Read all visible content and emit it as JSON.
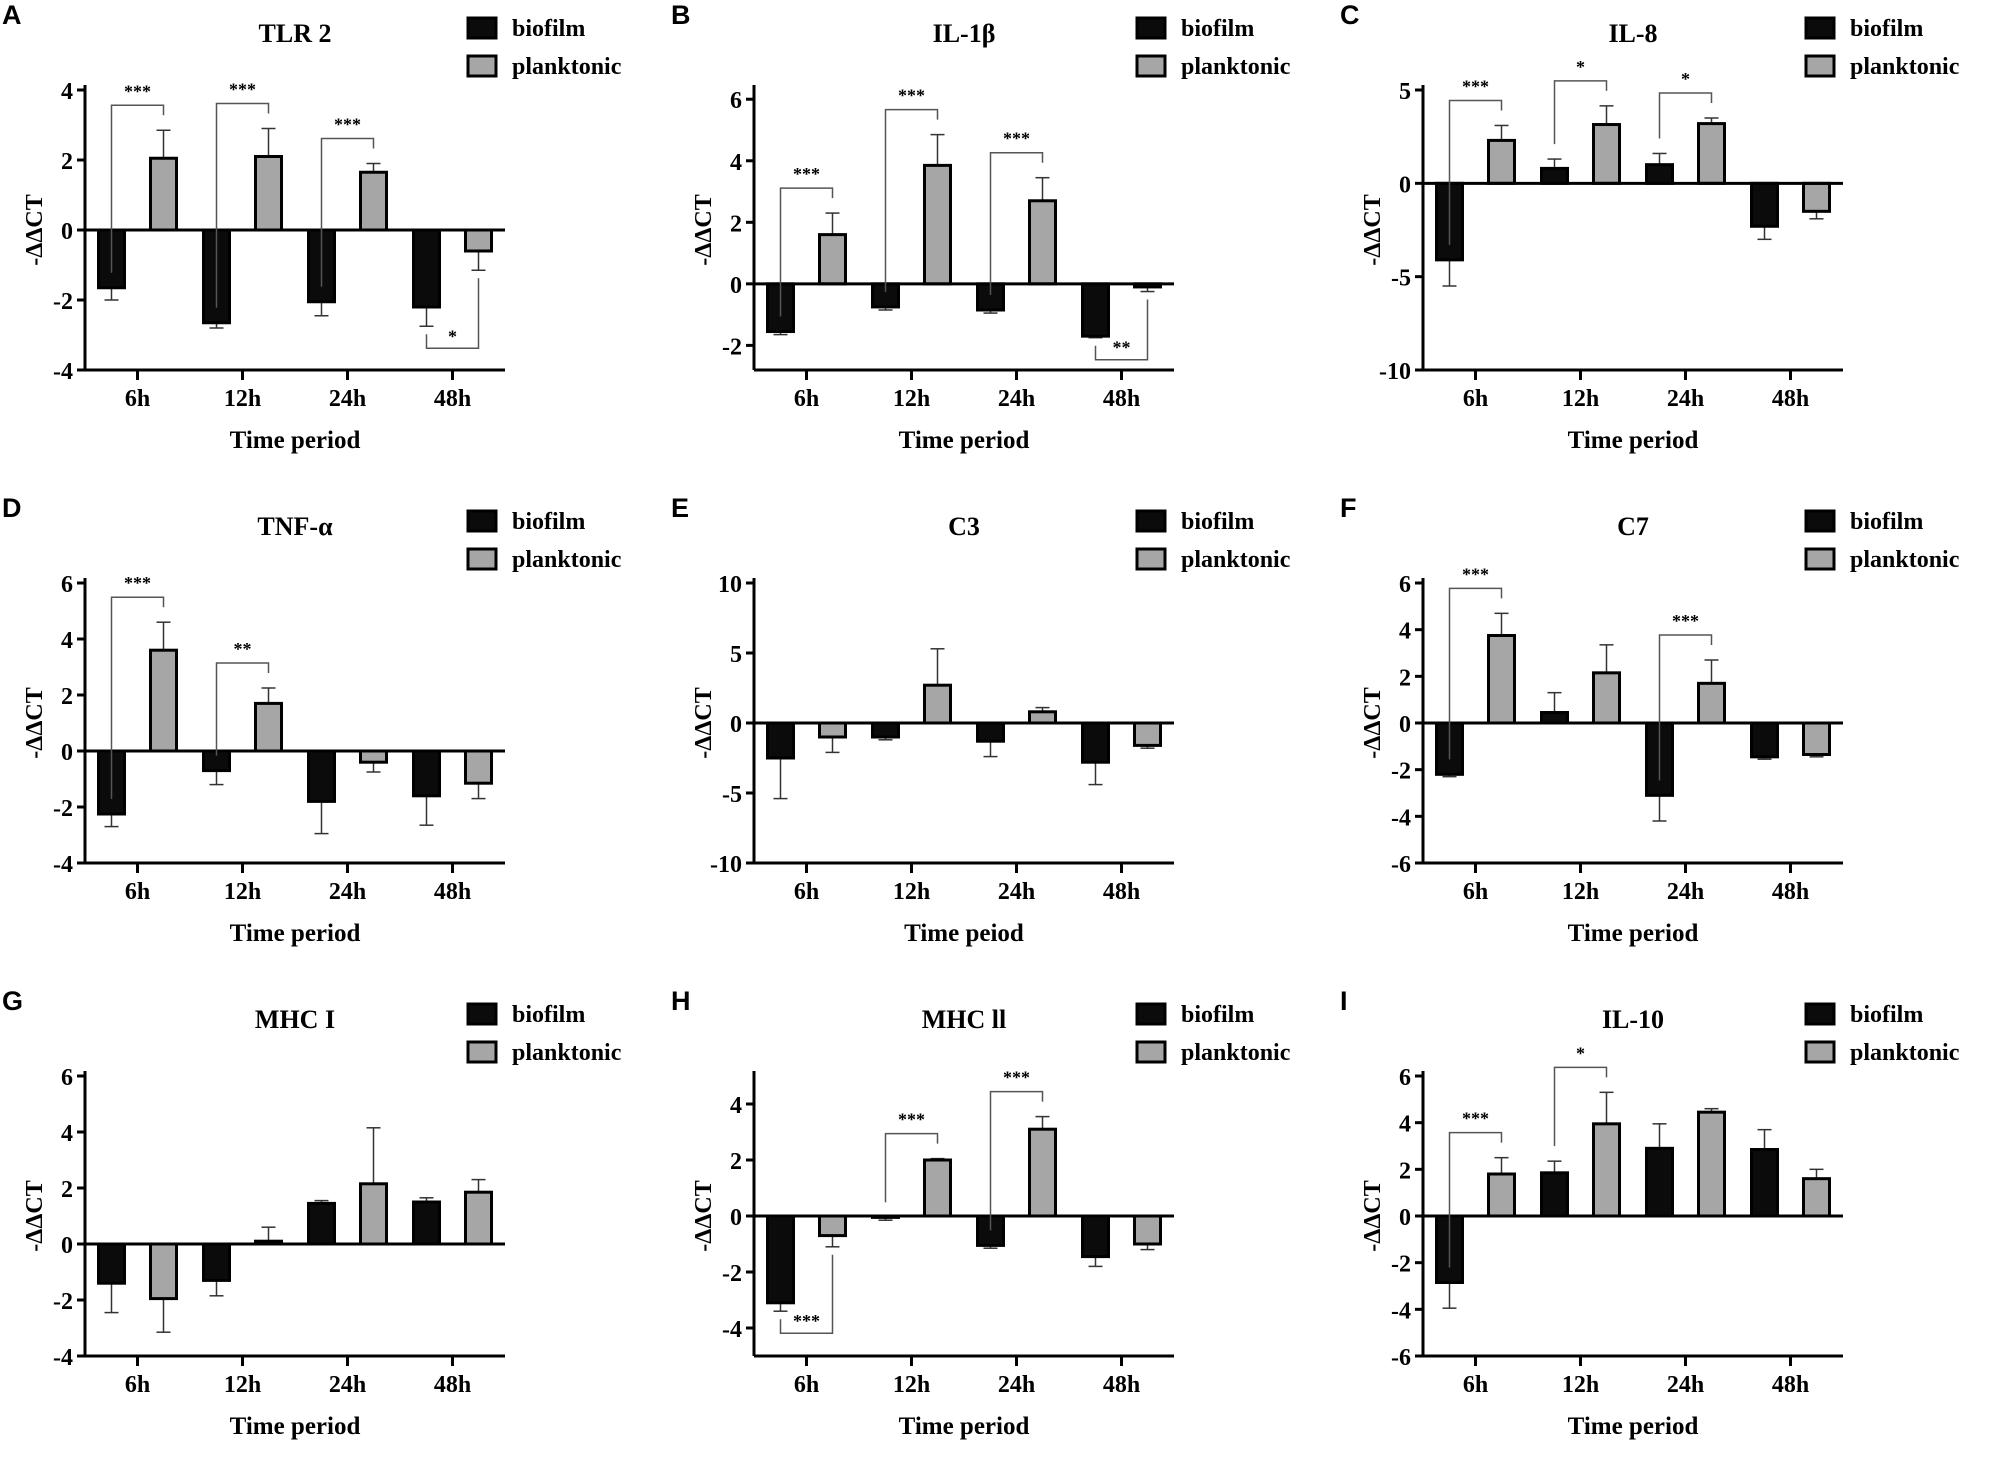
{
  "legend": {
    "biofilm": "biofilm",
    "planktonic": "planktonic"
  },
  "colors": {
    "biofilm": "#0b0b0b",
    "planktonic": "#a6a6a6"
  },
  "chart_data": [
    {
      "panel": "A",
      "type": "bar",
      "title": "TLR 2",
      "xlabel": "Time period",
      "ylabel": "-ΔΔCT",
      "ylim": [
        -4,
        4
      ],
      "yticks": [
        -4,
        -2,
        0,
        2,
        4
      ],
      "categories": [
        "6h",
        "12h",
        "24h",
        "48h"
      ],
      "series": [
        {
          "name": "biofilm",
          "values": [
            -1.65,
            -2.65,
            -2.05,
            -2.2
          ],
          "errors": [
            0.35,
            0.15,
            0.4,
            0.55
          ]
        },
        {
          "name": "planktonic",
          "values": [
            2.05,
            2.1,
            1.65,
            -0.6
          ],
          "errors": [
            0.8,
            0.8,
            0.25,
            0.55
          ]
        }
      ],
      "significance": [
        {
          "category": "6h",
          "label": "***",
          "position": "above"
        },
        {
          "category": "12h",
          "label": "***",
          "position": "above"
        },
        {
          "category": "24h",
          "label": "***",
          "position": "above"
        },
        {
          "category": "48h",
          "label": "*",
          "position": "below"
        }
      ]
    },
    {
      "panel": "B",
      "type": "bar",
      "title": "IL-1β",
      "xlabel": "Time period",
      "ylabel": "-ΔΔCT",
      "ylim": [
        -2.8,
        6.3
      ],
      "yticks": [
        -2,
        0,
        2,
        4,
        6
      ],
      "categories": [
        "6h",
        "12h",
        "24h",
        "48h"
      ],
      "series": [
        {
          "name": "biofilm",
          "values": [
            -1.55,
            -0.75,
            -0.85,
            -1.7
          ],
          "errors": [
            0.1,
            0.1,
            0.1,
            0.05
          ]
        },
        {
          "name": "planktonic",
          "values": [
            1.6,
            3.85,
            2.7,
            -0.1
          ],
          "errors": [
            0.7,
            1.0,
            0.75,
            0.15
          ]
        }
      ],
      "significance": [
        {
          "category": "6h",
          "label": "***",
          "position": "above"
        },
        {
          "category": "12h",
          "label": "***",
          "position": "above"
        },
        {
          "category": "24h",
          "label": "***",
          "position": "above"
        },
        {
          "category": "48h",
          "label": "**",
          "position": "below"
        }
      ]
    },
    {
      "panel": "C",
      "type": "bar",
      "title": "IL-8",
      "xlabel": "Time period",
      "ylabel": "-ΔΔCT",
      "ylim": [
        -10,
        5
      ],
      "yticks": [
        -10,
        -5,
        0,
        5
      ],
      "categories": [
        "6h",
        "12h",
        "24h",
        "48h"
      ],
      "series": [
        {
          "name": "biofilm",
          "values": [
            -4.1,
            0.8,
            1.0,
            -2.3
          ],
          "errors": [
            1.4,
            0.5,
            0.6,
            0.7
          ]
        },
        {
          "name": "planktonic",
          "values": [
            2.3,
            3.15,
            3.2,
            -1.5
          ],
          "errors": [
            0.8,
            1.0,
            0.3,
            0.4
          ]
        }
      ],
      "significance": [
        {
          "category": "6h",
          "label": "***",
          "position": "above"
        },
        {
          "category": "12h",
          "label": "*",
          "position": "above"
        },
        {
          "category": "24h",
          "label": "*",
          "position": "above"
        }
      ]
    },
    {
      "panel": "D",
      "type": "bar",
      "title": "TNF-α",
      "xlabel": "Time period",
      "ylabel": "-ΔΔCT",
      "ylim": [
        -4,
        6
      ],
      "yticks": [
        -4,
        -2,
        0,
        2,
        4,
        6
      ],
      "categories": [
        "6h",
        "12h",
        "24h",
        "48h"
      ],
      "series": [
        {
          "name": "biofilm",
          "values": [
            -2.25,
            -0.7,
            -1.8,
            -1.6
          ],
          "errors": [
            0.45,
            0.5,
            1.15,
            1.05
          ]
        },
        {
          "name": "planktonic",
          "values": [
            3.6,
            1.7,
            -0.4,
            -1.15
          ],
          "errors": [
            1.0,
            0.55,
            0.35,
            0.55
          ]
        }
      ],
      "significance": [
        {
          "category": "6h",
          "label": "***",
          "position": "above"
        },
        {
          "category": "12h",
          "label": "**",
          "position": "above"
        }
      ]
    },
    {
      "panel": "E",
      "type": "bar",
      "title": "C3",
      "xlabel": "Time peiod",
      "ylabel": "-ΔΔCT",
      "ylim": [
        -10,
        10
      ],
      "yticks": [
        -10,
        -5,
        0,
        5,
        10
      ],
      "categories": [
        "6h",
        "12h",
        "24h",
        "48h"
      ],
      "series": [
        {
          "name": "biofilm",
          "values": [
            -2.5,
            -1.0,
            -1.3,
            -2.8
          ],
          "errors": [
            2.9,
            0.2,
            1.1,
            1.6
          ]
        },
        {
          "name": "planktonic",
          "values": [
            -1.0,
            2.7,
            0.8,
            -1.6
          ],
          "errors": [
            1.1,
            2.6,
            0.3,
            0.2
          ]
        }
      ],
      "significance": []
    },
    {
      "panel": "F",
      "type": "bar",
      "title": "C7",
      "xlabel": "Time period",
      "ylabel": "-ΔΔCT",
      "ylim": [
        -6,
        6
      ],
      "yticks": [
        -6,
        -4,
        -2,
        0,
        2,
        4,
        6
      ],
      "categories": [
        "6h",
        "12h",
        "24h",
        "48h"
      ],
      "series": [
        {
          "name": "biofilm",
          "values": [
            -2.2,
            0.45,
            -3.1,
            -1.45
          ],
          "errors": [
            0.1,
            0.85,
            1.1,
            0.1
          ]
        },
        {
          "name": "planktonic",
          "values": [
            3.75,
            2.15,
            1.7,
            -1.35
          ],
          "errors": [
            0.95,
            1.2,
            1.0,
            0.1
          ]
        }
      ],
      "significance": [
        {
          "category": "6h",
          "label": "***",
          "position": "above"
        },
        {
          "category": "24h",
          "label": "***",
          "position": "above"
        }
      ]
    },
    {
      "panel": "G",
      "type": "bar",
      "title": "MHC I",
      "xlabel": "Time period",
      "ylabel": "-ΔΔCT",
      "ylim": [
        -4,
        6
      ],
      "yticks": [
        -4,
        -2,
        0,
        2,
        4,
        6
      ],
      "categories": [
        "6h",
        "12h",
        "24h",
        "48h"
      ],
      "series": [
        {
          "name": "biofilm",
          "values": [
            -1.4,
            -1.3,
            1.45,
            1.5
          ],
          "errors": [
            1.05,
            0.55,
            0.1,
            0.15
          ]
        },
        {
          "name": "planktonic",
          "values": [
            -1.95,
            0.1,
            2.15,
            1.85
          ],
          "errors": [
            1.2,
            0.5,
            2.0,
            0.45
          ]
        }
      ],
      "significance": []
    },
    {
      "panel": "H",
      "type": "bar",
      "title": "MHC ll",
      "xlabel": "Time period",
      "ylabel": "-ΔΔCT",
      "ylim": [
        -5,
        5
      ],
      "yticks": [
        -4,
        -2,
        0,
        2,
        4
      ],
      "categories": [
        "6h",
        "12h",
        "24h",
        "48h"
      ],
      "series": [
        {
          "name": "biofilm",
          "values": [
            -3.1,
            -0.05,
            -1.05,
            -1.45
          ],
          "errors": [
            0.3,
            0.1,
            0.1,
            0.35
          ]
        },
        {
          "name": "planktonic",
          "values": [
            -0.7,
            2.0,
            3.1,
            -1.0
          ],
          "errors": [
            0.4,
            0.05,
            0.45,
            0.2
          ]
        }
      ],
      "significance": [
        {
          "category": "6h",
          "label": "***",
          "position": "below"
        },
        {
          "category": "12h",
          "label": "***",
          "position": "above"
        },
        {
          "category": "24h",
          "label": "***",
          "position": "above"
        }
      ]
    },
    {
      "panel": "I",
      "type": "bar",
      "title": "IL-10",
      "xlabel": "Time period",
      "ylabel": "-ΔΔCT",
      "ylim": [
        -6,
        6
      ],
      "yticks": [
        -6,
        -4,
        -2,
        0,
        2,
        4,
        6
      ],
      "categories": [
        "6h",
        "12h",
        "24h",
        "48h"
      ],
      "series": [
        {
          "name": "biofilm",
          "values": [
            -2.85,
            1.85,
            2.9,
            2.85
          ],
          "errors": [
            1.1,
            0.5,
            1.05,
            0.85
          ]
        },
        {
          "name": "planktonic",
          "values": [
            1.8,
            3.95,
            4.45,
            1.6
          ],
          "errors": [
            0.7,
            1.35,
            0.15,
            0.4
          ]
        }
      ],
      "significance": [
        {
          "category": "6h",
          "label": "***",
          "position": "above"
        },
        {
          "category": "12h",
          "label": "*",
          "position": "above"
        }
      ]
    }
  ]
}
